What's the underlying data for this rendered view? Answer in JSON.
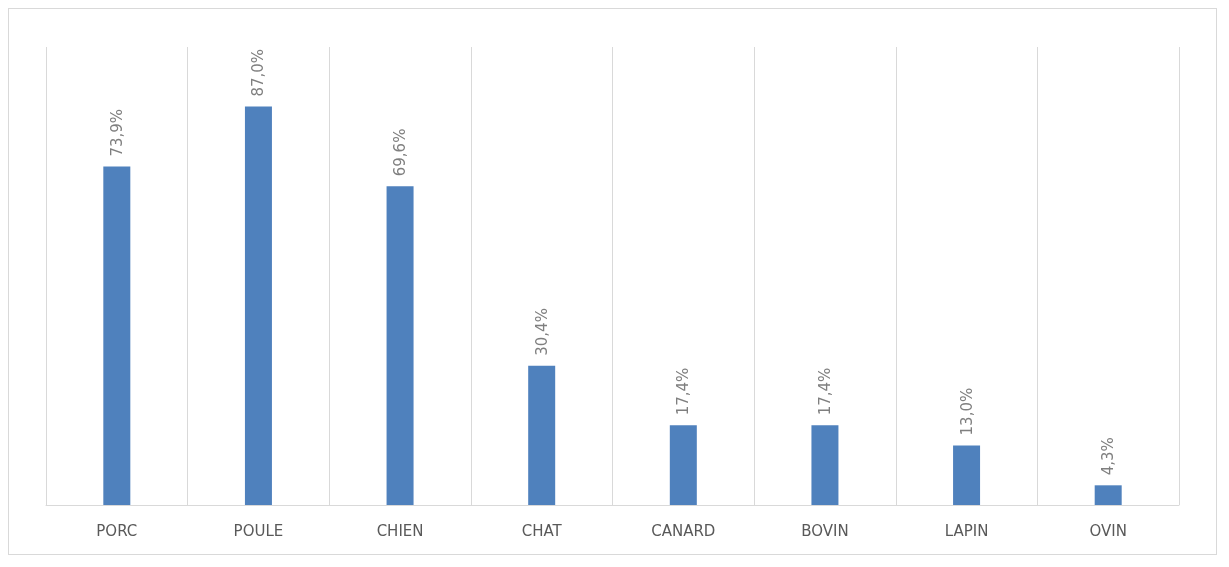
{
  "chart_data": {
    "type": "bar",
    "categories": [
      "PORC",
      "POULE",
      "CHIEN",
      "CHAT",
      "CANARD",
      "BOVIN",
      "LAPIN",
      "OVIN"
    ],
    "values": [
      73.9,
      87.0,
      69.6,
      30.4,
      17.4,
      17.4,
      13.0,
      4.3
    ],
    "value_labels": [
      "73,9%",
      "87,0%",
      "69,6%",
      "30,4%",
      "17,4%",
      "17,4%",
      "13,0%",
      "4,3%"
    ],
    "color": "#4f81bd",
    "ylim": [
      0,
      100
    ],
    "grid": "x"
  }
}
